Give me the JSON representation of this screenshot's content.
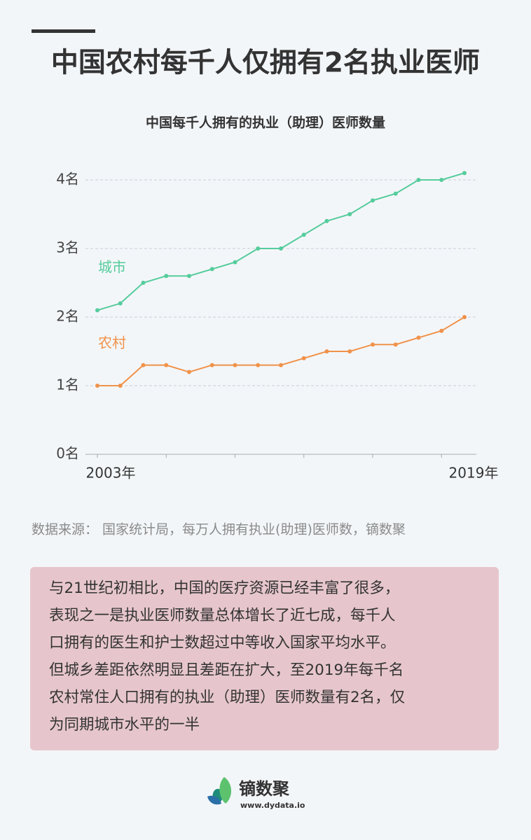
{
  "title": "中国农村每千人仅拥有2名执业医师",
  "chart_data": {
    "type": "line",
    "title": "中国每千人拥有的执业（助理）医师数量",
    "categories": [
      "2003年",
      null,
      null,
      null,
      null,
      null,
      null,
      null,
      null,
      null,
      null,
      null,
      null,
      null,
      null,
      null,
      "2019年"
    ],
    "series": [
      {
        "name": "城市",
        "color": "#55cc9c",
        "values": [
          2.1,
          2.2,
          2.5,
          2.6,
          2.6,
          2.7,
          2.8,
          3.0,
          3.0,
          3.2,
          3.4,
          3.5,
          3.7,
          3.8,
          4.0,
          4.0,
          4.1
        ]
      },
      {
        "name": "农村",
        "color": "#f0924a",
        "values": [
          1.0,
          1.0,
          1.3,
          1.3,
          1.2,
          1.3,
          1.3,
          1.3,
          1.3,
          1.4,
          1.5,
          1.5,
          1.6,
          1.6,
          1.7,
          1.8,
          2.0
        ]
      }
    ],
    "ylim": [
      0,
      4.2
    ],
    "yticks": [
      {
        "value": 0,
        "label": "0名"
      },
      {
        "value": 1,
        "label": "1名"
      },
      {
        "value": 2,
        "label": "2名"
      },
      {
        "value": 3,
        "label": "3名"
      },
      {
        "value": 4,
        "label": "4名"
      }
    ],
    "grid": true
  },
  "source": "数据来源： 国家统计局，每万人拥有执业(助理)医师数，镝数聚",
  "note": {
    "lines": [
      "与21世纪初相比，中国的医疗资源已经丰富了很多，",
      "表现之一是执业医师数量总体增长了近七成，每千人",
      "口拥有的医生和护士数超过中等收入国家平均水平。",
      "但城乡差距依然明显且差距在扩大，至2019年每千名",
      "农村常住人口拥有的执业（助理）医师数量有2名，仅",
      "为同期城市水平的一半"
    ]
  },
  "logo": {
    "name": "镝数聚",
    "url": "www.dydata.io"
  }
}
